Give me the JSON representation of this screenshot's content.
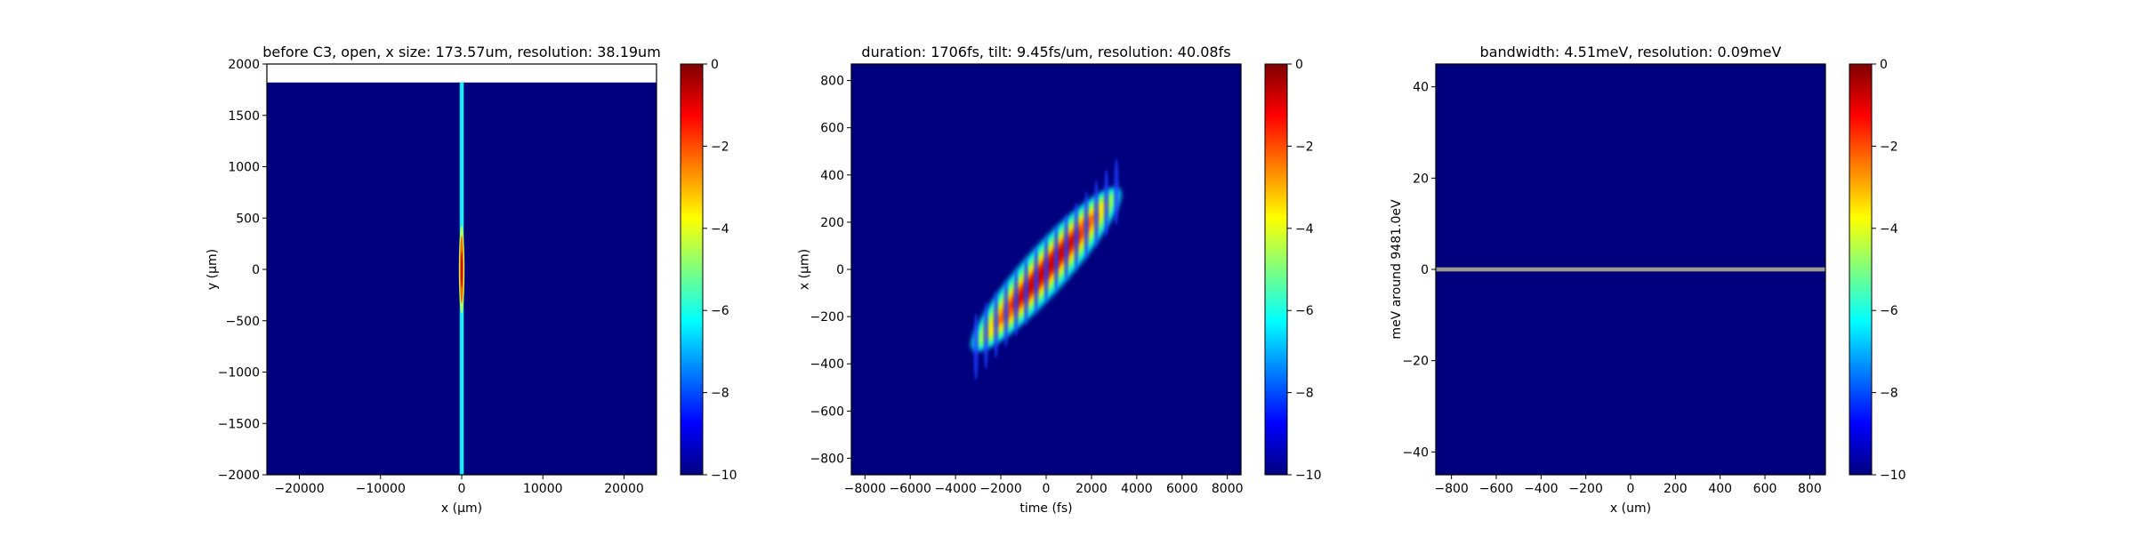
{
  "colorscale": {
    "name": "jet",
    "stops": [
      "#00007f",
      "#0000ff",
      "#007fff",
      "#00ffff",
      "#7fff7f",
      "#ffff00",
      "#ff7f00",
      "#ff0000",
      "#7f0000"
    ],
    "background": "#00007f"
  },
  "chart_data": [
    {
      "type": "heatmap",
      "title": "before C3, open, x size: 173.57um, resolution: 38.19um",
      "xlabel": "x (μm)",
      "ylabel": "y (μm)",
      "xlim": [
        -24000,
        24000
      ],
      "ylim": [
        -2000,
        2000
      ],
      "xticks": [
        -20000,
        -10000,
        0,
        10000,
        20000
      ],
      "xtick_labels": [
        "−20000",
        "−10000",
        "0",
        "10000",
        "20000"
      ],
      "yticks": [
        -2000,
        -1500,
        -1000,
        -500,
        0,
        500,
        1000,
        1500,
        2000
      ],
      "ytick_labels": [
        "−2000",
        "−1500",
        "−1000",
        "−500",
        "0",
        "500",
        "1000",
        "1500",
        "2000"
      ],
      "data_extent": {
        "x": [
          -24000,
          24000
        ],
        "y": [
          -2000,
          1820
        ]
      },
      "features": [
        {
          "shape": "vertical_line",
          "x_center": 0,
          "x_fwhm": 174,
          "y_range": [
            -2000,
            1820
          ],
          "level": -6
        },
        {
          "shape": "core",
          "x_center": 0,
          "x_halfwidth": 120,
          "y_halfheight": 330,
          "level": -1
        }
      ],
      "colorbar": {
        "range": [
          -10,
          0
        ],
        "ticks": [
          0,
          -2,
          -4,
          -6,
          -8,
          -10
        ],
        "tick_labels": [
          "0",
          "−2",
          "−4",
          "−6",
          "−8",
          "−10"
        ]
      }
    },
    {
      "type": "heatmap",
      "title": "duration: 1706fs, tilt: 9.45fs/um, resolution: 40.08fs",
      "xlabel": "time (fs)",
      "ylabel": "x (μm)",
      "xlim": [
        -8600,
        8600
      ],
      "ylim": [
        -870,
        870
      ],
      "xticks": [
        -8000,
        -6000,
        -4000,
        -2000,
        0,
        2000,
        4000,
        6000,
        8000
      ],
      "xtick_labels": [
        "−8000",
        "−6000",
        "−4000",
        "−2000",
        "0",
        "2000",
        "4000",
        "6000",
        "8000"
      ],
      "yticks": [
        -800,
        -600,
        -400,
        -200,
        0,
        200,
        400,
        600,
        800
      ],
      "ytick_labels": [
        "−800",
        "−600",
        "−400",
        "−200",
        "0",
        "200",
        "400",
        "600",
        "800"
      ],
      "features": [
        {
          "shape": "tilted_pulse",
          "center": [
            0,
            0
          ],
          "tilt_fs_per_um": 9.45,
          "length_fs": 6200,
          "halo_width_fs": 700,
          "core_width_fs": 420,
          "level": 0,
          "fringe_count": 15
        }
      ],
      "colorbar": {
        "range": [
          -10,
          0
        ],
        "ticks": [
          0,
          -2,
          -4,
          -6,
          -8,
          -10
        ],
        "tick_labels": [
          "0",
          "−2",
          "−4",
          "−6",
          "−8",
          "−10"
        ]
      }
    },
    {
      "type": "heatmap",
      "title": "bandwidth: 4.51meV, resolution: 0.09meV",
      "xlabel": "x (um)",
      "ylabel": "meV around 9481.0eV",
      "xlim": [
        -870,
        870
      ],
      "ylim": [
        -45,
        45
      ],
      "xticks": [
        -800,
        -600,
        -400,
        -200,
        0,
        200,
        400,
        600,
        800
      ],
      "xtick_labels": [
        "−800",
        "−600",
        "−400",
        "−200",
        "0",
        "200",
        "400",
        "600",
        "800"
      ],
      "yticks": [
        -40,
        -20,
        0,
        20,
        40
      ],
      "ytick_labels": [
        "−40",
        "−20",
        "0",
        "20",
        "40"
      ],
      "features": [
        {
          "shape": "horizontal_line",
          "y_center": 0,
          "y_width": 0.9,
          "color": "#9a9a8c"
        }
      ],
      "colorbar": {
        "range": [
          -10,
          0
        ],
        "ticks": [
          0,
          -2,
          -4,
          -6,
          -8,
          -10
        ],
        "tick_labels": [
          "0",
          "−2",
          "−4",
          "−6",
          "−8",
          "−10"
        ]
      }
    }
  ]
}
